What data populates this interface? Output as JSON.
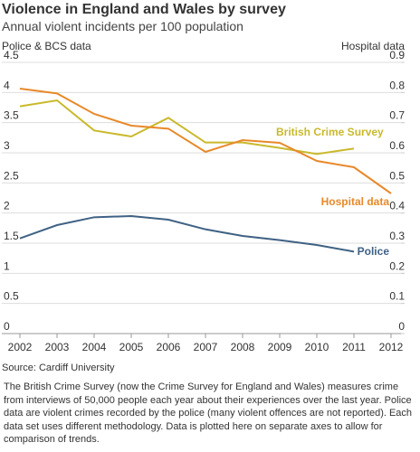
{
  "chart_data": {
    "type": "line",
    "title": "Violence in England and Wales by survey",
    "subtitle": "Annual violent incidents per 100 population",
    "y_label": "Police & BCS data",
    "y2_label": "Hospital data",
    "x": [
      2002,
      2003,
      2004,
      2005,
      2006,
      2007,
      2008,
      2009,
      2010,
      2011,
      2012
    ],
    "xlim": [
      2002,
      2012
    ],
    "xticks": [
      2002,
      2003,
      2004,
      2005,
      2006,
      2007,
      2008,
      2009,
      2010,
      2011,
      2012
    ],
    "ylim": [
      0,
      4.5
    ],
    "yticks": [
      0,
      0.5,
      1,
      1.5,
      2,
      2.5,
      3,
      3.5,
      4,
      4.5
    ],
    "y2lim": [
      0,
      0.9
    ],
    "y2ticks": [
      0,
      0.1,
      0.2,
      0.3,
      0.4,
      0.5,
      0.6,
      0.7,
      0.8,
      0.9
    ],
    "grid": true,
    "series": [
      {
        "name": "British Crime Survey",
        "color": "#c9b92c",
        "values": [
          3.77,
          3.87,
          3.37,
          3.27,
          3.58,
          3.17,
          3.17,
          3.08,
          2.98,
          3.07,
          null
        ]
      },
      {
        "name": "Hospital data",
        "color": "#e8892a",
        "axis": "y2",
        "values": [
          0.813,
          0.797,
          0.729,
          0.69,
          0.68,
          0.603,
          0.642,
          0.633,
          0.573,
          0.552,
          0.465
        ]
      },
      {
        "name": "Police",
        "color": "#3f6184",
        "values": [
          1.58,
          1.8,
          1.93,
          1.95,
          1.89,
          1.73,
          1.62,
          1.55,
          1.47,
          1.36,
          null
        ]
      }
    ],
    "source": "Source: Cardiff University",
    "note": "The British Crime Survey (now the Crime Survey for England and Wales) measures crime from interviews of 50,000 people each year about their experiences over the last year. Police data are violent crimes recorded by the police (many violent offences are not reported). Each data set uses different methodology. Data is plotted here on separate axes to allow for comparison of trends."
  }
}
